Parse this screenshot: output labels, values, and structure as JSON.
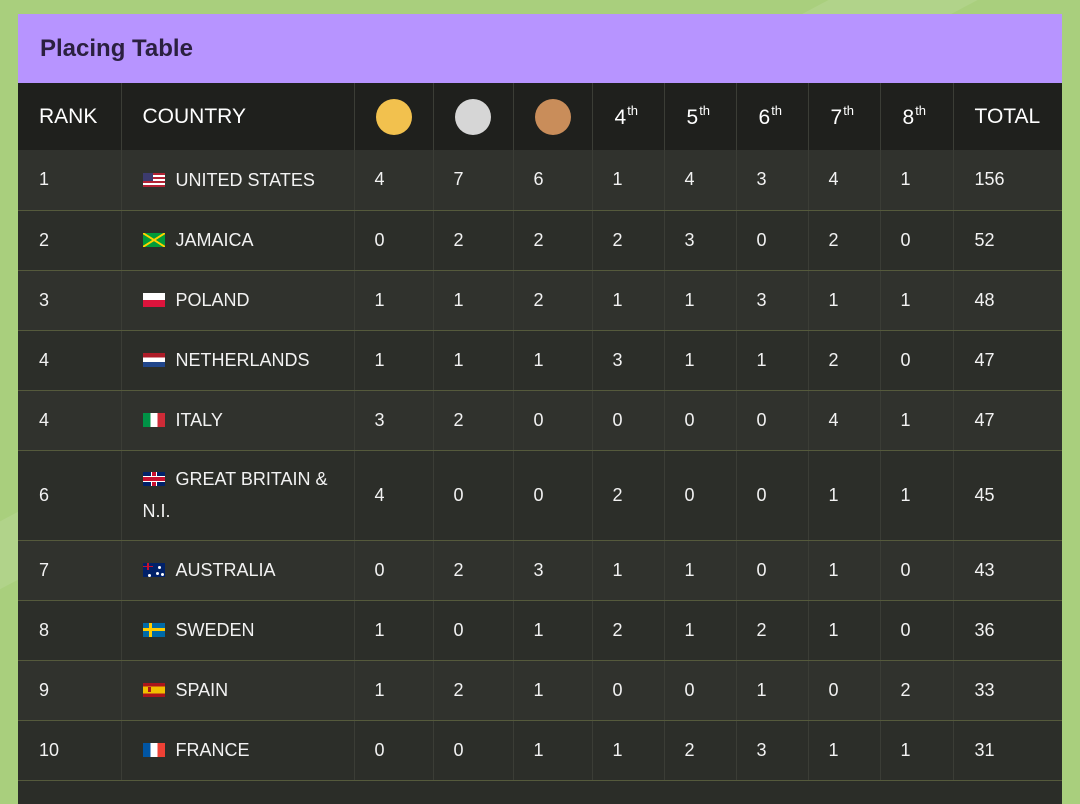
{
  "title": "Placing Table",
  "colors": {
    "title_bar": "#b794ff",
    "gold": "#f2c14e",
    "silver": "#d6d6d6",
    "bronze": "#c98d5a",
    "background": "#a9cf7d"
  },
  "headers": {
    "rank": "RANK",
    "country": "COUNTRY",
    "gold_icon": "gold-medal-icon",
    "silver_icon": "silver-medal-icon",
    "bronze_icon": "bronze-medal-icon",
    "places": [
      {
        "num": "4",
        "suffix": "th"
      },
      {
        "num": "5",
        "suffix": "th"
      },
      {
        "num": "6",
        "suffix": "th"
      },
      {
        "num": "7",
        "suffix": "th"
      },
      {
        "num": "8",
        "suffix": "th"
      }
    ],
    "total": "TOTAL"
  },
  "rows": [
    {
      "rank": "1",
      "flag": "usa-flag-icon",
      "country": "UNITED STATES",
      "gold": "4",
      "silver": "7",
      "bronze": "6",
      "p4": "1",
      "p5": "4",
      "p6": "3",
      "p7": "4",
      "p8": "1",
      "total": "156"
    },
    {
      "rank": "2",
      "flag": "jamaica-flag-icon",
      "country": "JAMAICA",
      "gold": "0",
      "silver": "2",
      "bronze": "2",
      "p4": "2",
      "p5": "3",
      "p6": "0",
      "p7": "2",
      "p8": "0",
      "total": "52"
    },
    {
      "rank": "3",
      "flag": "poland-flag-icon",
      "country": "POLAND",
      "gold": "1",
      "silver": "1",
      "bronze": "2",
      "p4": "1",
      "p5": "1",
      "p6": "3",
      "p7": "1",
      "p8": "1",
      "total": "48"
    },
    {
      "rank": "4",
      "flag": "netherlands-flag-icon",
      "country": "NETHERLANDS",
      "gold": "1",
      "silver": "1",
      "bronze": "1",
      "p4": "3",
      "p5": "1",
      "p6": "1",
      "p7": "2",
      "p8": "0",
      "total": "47"
    },
    {
      "rank": "4",
      "flag": "italy-flag-icon",
      "country": "ITALY",
      "gold": "3",
      "silver": "2",
      "bronze": "0",
      "p4": "0",
      "p5": "0",
      "p6": "0",
      "p7": "4",
      "p8": "1",
      "total": "47"
    },
    {
      "rank": "6",
      "flag": "great-britain-flag-icon",
      "country": "GREAT BRITAIN & N.I.",
      "gold": "4",
      "silver": "0",
      "bronze": "0",
      "p4": "2",
      "p5": "0",
      "p6": "0",
      "p7": "1",
      "p8": "1",
      "total": "45"
    },
    {
      "rank": "7",
      "flag": "australia-flag-icon",
      "country": "AUSTRALIA",
      "gold": "0",
      "silver": "2",
      "bronze": "3",
      "p4": "1",
      "p5": "1",
      "p6": "0",
      "p7": "1",
      "p8": "0",
      "total": "43"
    },
    {
      "rank": "8",
      "flag": "sweden-flag-icon",
      "country": "SWEDEN",
      "gold": "1",
      "silver": "0",
      "bronze": "1",
      "p4": "2",
      "p5": "1",
      "p6": "2",
      "p7": "1",
      "p8": "0",
      "total": "36"
    },
    {
      "rank": "9",
      "flag": "spain-flag-icon",
      "country": "SPAIN",
      "gold": "1",
      "silver": "2",
      "bronze": "1",
      "p4": "0",
      "p5": "0",
      "p6": "1",
      "p7": "0",
      "p8": "2",
      "total": "33"
    },
    {
      "rank": "10",
      "flag": "france-flag-icon",
      "country": "FRANCE",
      "gold": "0",
      "silver": "0",
      "bronze": "1",
      "p4": "1",
      "p5": "2",
      "p6": "3",
      "p7": "1",
      "p8": "1",
      "total": "31"
    }
  ]
}
